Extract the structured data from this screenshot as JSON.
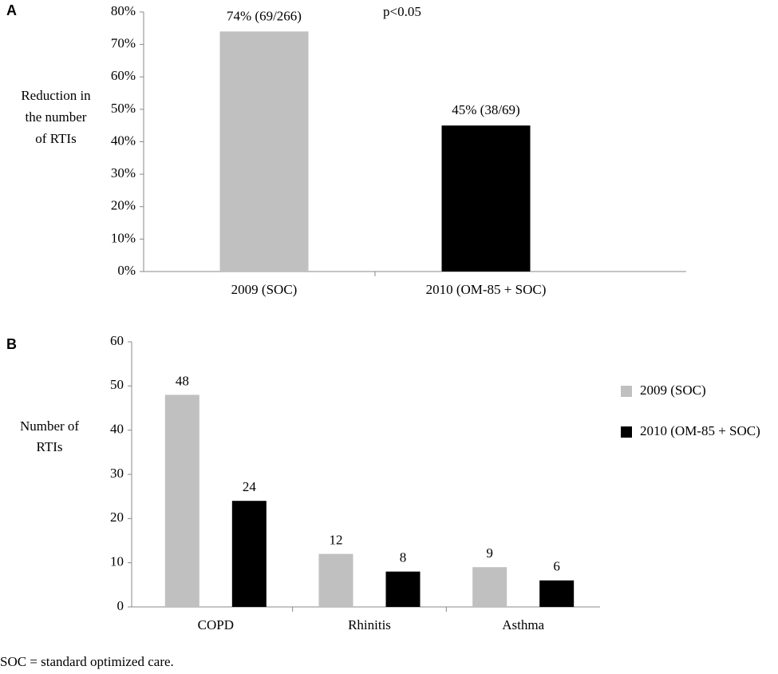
{
  "chart_data": [
    {
      "type": "bar",
      "panel_label": "A",
      "ylabel": [
        "Reduction in",
        "the number",
        "of RTIs"
      ],
      "annotation": "p<0.05",
      "categories": [
        "2009 (SOC)",
        "2010 (OM-85 + SOC)"
      ],
      "values": [
        74,
        45
      ],
      "value_labels": [
        "74% (69/266)",
        "45% (38/69)"
      ],
      "colors": [
        "#c0c0c0",
        "#000000"
      ],
      "ylim": [
        0,
        80
      ],
      "yticks": [
        {
          "value": 0,
          "label": "0%"
        },
        {
          "value": 10,
          "label": "10%"
        },
        {
          "value": 20,
          "label": "20%"
        },
        {
          "value": 30,
          "label": "30%"
        },
        {
          "value": 40,
          "label": "40%"
        },
        {
          "value": 50,
          "label": "50%"
        },
        {
          "value": 60,
          "label": "60%"
        },
        {
          "value": 70,
          "label": "70%"
        },
        {
          "value": 80,
          "label": "80%"
        }
      ],
      "grid": false
    },
    {
      "type": "bar",
      "panel_label": "B",
      "ylabel": [
        "Number of",
        "RTIs"
      ],
      "categories": [
        "COPD",
        "Rhinitis",
        "Asthma"
      ],
      "series": [
        {
          "name": "2009 (SOC)",
          "color": "#c0c0c0",
          "values": [
            48,
            12,
            9
          ]
        },
        {
          "name": "2010 (OM-85 + SOC)",
          "color": "#000000",
          "values": [
            24,
            8,
            6
          ]
        }
      ],
      "ylim": [
        0,
        60
      ],
      "yticks": [
        0,
        10,
        20,
        30,
        40,
        50,
        60
      ],
      "legend": "right",
      "grid": false
    }
  ],
  "footnote": "SOC = standard optimized care."
}
